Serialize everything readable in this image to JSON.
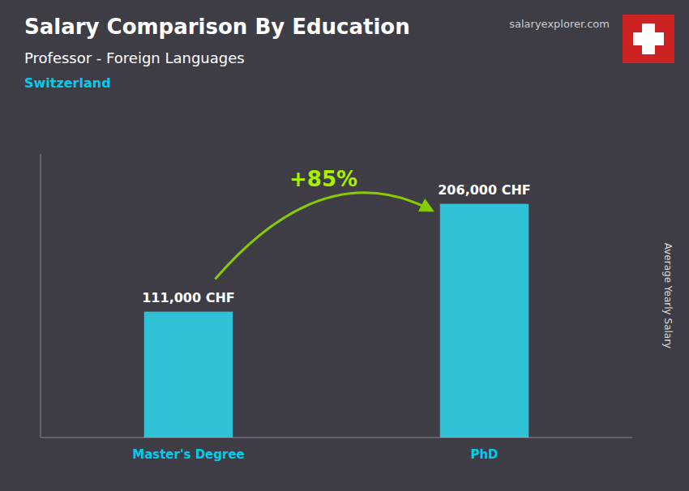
{
  "chart_data": {
    "type": "bar",
    "title": "Salary Comparison By Education",
    "subtitle": "Professor - Foreign Languages",
    "annotations": [
      "Switzerland",
      "salaryexplorer.com",
      "+85%"
    ],
    "y_label": "Average Yearly Salary",
    "categories": [
      "Master's Degree",
      "PhD"
    ],
    "values": [
      111000,
      206000
    ],
    "value_labels": [
      "111,000 CHF",
      "206,000 CHF"
    ],
    "data_labels": true,
    "color": "#2dd9f0",
    "ylim": [
      0,
      250000
    ],
    "tick_labels": false,
    "grid": false
  }
}
